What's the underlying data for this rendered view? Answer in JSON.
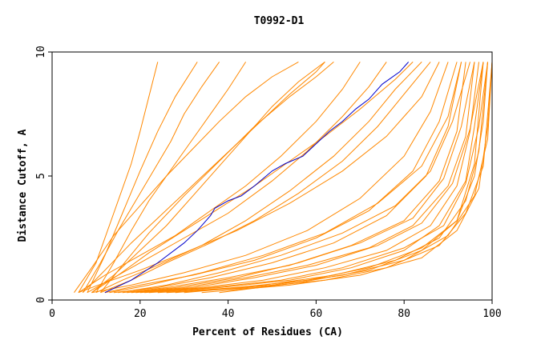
{
  "chart_data": {
    "type": "line",
    "title": "T0992-D1",
    "xlabel": "Percent of Residues (CA)",
    "ylabel": "Distance Cutoff, A",
    "xlim": [
      0,
      100
    ],
    "ylim": [
      0,
      10
    ],
    "x_ticks": [
      0,
      20,
      40,
      60,
      80,
      100
    ],
    "y_ticks": [
      0,
      5,
      10
    ],
    "grid": false,
    "colors": {
      "highlight": "#0000cc",
      "others": "#ff8800",
      "axes": "#000000"
    },
    "highlight": {
      "x": [
        12,
        18,
        24,
        30,
        33,
        36,
        37,
        40,
        43,
        46,
        50,
        53,
        57,
        60,
        63,
        66,
        69,
        72,
        75,
        79,
        81
      ],
      "y": [
        0.3,
        0.8,
        1.5,
        2.3,
        2.8,
        3.4,
        3.7,
        4.0,
        4.2,
        4.6,
        5.2,
        5.5,
        5.8,
        6.3,
        6.8,
        7.2,
        7.7,
        8.1,
        8.7,
        9.2,
        9.6
      ]
    },
    "series": [
      {
        "x": [
          6,
          10,
          14,
          18,
          20,
          22,
          24
        ],
        "y": [
          0.3,
          1.5,
          3.5,
          5.5,
          6.8,
          8.2,
          9.6
        ]
      },
      {
        "x": [
          8,
          12,
          16,
          20,
          24,
          28,
          33
        ],
        "y": [
          0.3,
          1.8,
          3.5,
          5.2,
          6.8,
          8.2,
          9.6
        ]
      },
      {
        "x": [
          10,
          14,
          18,
          22,
          28,
          34,
          40,
          44
        ],
        "y": [
          0.3,
          1.5,
          2.8,
          4.0,
          5.5,
          7.0,
          8.5,
          9.6
        ]
      },
      {
        "x": [
          7,
          12,
          18,
          24,
          30,
          36,
          42,
          48,
          54,
          60,
          62
        ],
        "y": [
          0.3,
          1.2,
          2.3,
          3.3,
          4.3,
          5.3,
          6.3,
          7.3,
          8.3,
          9.2,
          9.6
        ]
      },
      {
        "x": [
          9,
          14,
          20,
          26,
          32,
          38,
          44,
          50,
          56,
          62
        ],
        "y": [
          0.3,
          1.0,
          2.0,
          3.0,
          4.2,
          5.4,
          6.6,
          7.8,
          8.8,
          9.6
        ]
      },
      {
        "x": [
          6,
          12,
          20,
          28,
          36,
          44,
          52,
          60,
          66,
          70
        ],
        "y": [
          0.3,
          1.0,
          1.8,
          2.6,
          3.6,
          4.6,
          5.8,
          7.2,
          8.5,
          9.6
        ]
      },
      {
        "x": [
          11,
          16,
          22,
          30,
          38,
          46,
          54,
          60,
          64
        ],
        "y": [
          0.3,
          1.4,
          2.7,
          4.2,
          5.6,
          7.0,
          8.2,
          9.0,
          9.6
        ]
      },
      {
        "x": [
          8,
          14,
          22,
          30,
          40,
          50,
          58,
          66,
          72,
          76
        ],
        "y": [
          0.3,
          0.9,
          1.7,
          2.5,
          3.5,
          4.8,
          6.0,
          7.4,
          8.6,
          9.6
        ]
      },
      {
        "x": [
          10,
          16,
          24,
          34,
          44,
          54,
          64,
          72,
          78,
          84
        ],
        "y": [
          0.3,
          0.8,
          1.4,
          2.2,
          3.2,
          4.4,
          5.8,
          7.2,
          8.5,
          9.6
        ]
      },
      {
        "x": [
          6,
          12,
          20,
          30,
          42,
          54,
          66,
          76,
          84,
          88
        ],
        "y": [
          0.3,
          0.7,
          1.2,
          1.9,
          2.8,
          3.9,
          5.2,
          6.6,
          8.2,
          9.6
        ]
      },
      {
        "x": [
          9,
          18,
          30,
          44,
          58,
          70,
          80,
          86,
          90
        ],
        "y": [
          0.3,
          0.6,
          1.1,
          1.8,
          2.8,
          4.1,
          5.8,
          7.6,
          9.6
        ]
      },
      {
        "x": [
          12,
          20,
          32,
          46,
          60,
          72,
          82,
          88,
          92
        ],
        "y": [
          0.3,
          0.6,
          1.0,
          1.6,
          2.5,
          3.6,
          5.2,
          7.2,
          9.6
        ]
      },
      {
        "x": [
          14,
          24,
          36,
          50,
          64,
          76,
          85,
          90,
          93
        ],
        "y": [
          0.3,
          0.5,
          0.9,
          1.5,
          2.3,
          3.4,
          5.0,
          7.0,
          9.6
        ]
      },
      {
        "x": [
          16,
          26,
          40,
          54,
          68,
          80,
          88,
          92,
          94
        ],
        "y": [
          0.3,
          0.5,
          0.9,
          1.4,
          2.2,
          3.2,
          4.8,
          6.8,
          9.6
        ]
      },
      {
        "x": [
          18,
          30,
          44,
          58,
          72,
          82,
          90,
          94,
          96
        ],
        "y": [
          0.3,
          0.5,
          0.9,
          1.4,
          2.1,
          3.0,
          4.6,
          6.6,
          9.6
        ]
      },
      {
        "x": [
          20,
          34,
          48,
          62,
          76,
          86,
          92,
          95,
          97
        ],
        "y": [
          0.3,
          0.5,
          0.8,
          1.3,
          2.0,
          3.0,
          4.6,
          6.8,
          9.6
        ]
      },
      {
        "x": [
          22,
          38,
          54,
          68,
          80,
          88,
          94,
          96,
          98
        ],
        "y": [
          0.3,
          0.5,
          0.8,
          1.3,
          2.0,
          3.0,
          4.8,
          7.0,
          9.6
        ]
      },
      {
        "x": [
          24,
          42,
          58,
          72,
          84,
          92,
          96,
          98,
          99
        ],
        "y": [
          0.3,
          0.5,
          0.8,
          1.3,
          2.1,
          3.2,
          5.0,
          7.2,
          9.6
        ]
      },
      {
        "x": [
          26,
          46,
          62,
          76,
          88,
          94,
          98,
          99,
          100
        ],
        "y": [
          0.3,
          0.5,
          0.8,
          1.3,
          2.2,
          3.5,
          5.4,
          7.5,
          9.6
        ]
      },
      {
        "x": [
          30,
          50,
          66,
          80,
          90,
          96,
          99,
          100
        ],
        "y": [
          0.3,
          0.6,
          1.0,
          1.6,
          2.6,
          4.2,
          6.5,
          9.6
        ]
      },
      {
        "x": [
          34,
          54,
          70,
          84,
          92,
          97,
          99,
          100
        ],
        "y": [
          0.3,
          0.6,
          1.0,
          1.7,
          2.8,
          4.5,
          7.0,
          9.6
        ]
      },
      {
        "x": [
          28,
          48,
          64,
          78,
          88,
          94,
          97,
          99
        ],
        "y": [
          0.3,
          0.6,
          1.0,
          1.6,
          2.5,
          4.0,
          6.0,
          9.6
        ]
      },
      {
        "x": [
          38,
          56,
          72,
          84,
          92,
          96,
          98
        ],
        "y": [
          0.3,
          0.7,
          1.2,
          2.0,
          3.2,
          5.5,
          9.6
        ]
      },
      {
        "x": [
          15,
          26,
          38,
          52,
          66,
          78,
          86,
          91,
          95
        ],
        "y": [
          0.3,
          0.6,
          1.1,
          1.8,
          2.7,
          3.8,
          5.2,
          7.2,
          9.6
        ]
      },
      {
        "x": [
          13,
          22,
          34,
          48,
          62,
          74,
          84,
          90,
          93
        ],
        "y": [
          0.3,
          0.6,
          1.1,
          1.8,
          2.7,
          3.9,
          5.4,
          7.4,
          9.6
        ]
      },
      {
        "x": [
          17,
          28,
          42,
          56,
          70,
          82,
          89,
          93,
          96
        ],
        "y": [
          0.3,
          0.5,
          0.9,
          1.5,
          2.3,
          3.3,
          4.9,
          7.0,
          9.6
        ]
      },
      {
        "x": [
          19,
          32,
          46,
          60,
          74,
          84,
          91,
          95,
          98
        ],
        "y": [
          0.3,
          0.5,
          0.9,
          1.4,
          2.2,
          3.1,
          4.7,
          6.9,
          9.6
        ]
      },
      {
        "x": [
          21,
          36,
          52,
          66,
          80,
          89,
          94,
          97,
          99
        ],
        "y": [
          0.3,
          0.5,
          0.8,
          1.3,
          2.1,
          3.0,
          4.7,
          7.0,
          9.6
        ]
      },
      {
        "x": [
          7,
          11,
          15,
          19,
          23,
          27,
          30,
          34,
          38
        ],
        "y": [
          0.3,
          1.5,
          2.8,
          4.0,
          5.2,
          6.4,
          7.5,
          8.6,
          9.6
        ]
      },
      {
        "x": [
          5,
          9,
          14,
          20,
          26,
          32,
          38,
          44,
          50,
          56
        ],
        "y": [
          0.3,
          1.3,
          2.6,
          3.8,
          5.0,
          6.1,
          7.2,
          8.2,
          9.0,
          9.6
        ]
      },
      {
        "x": [
          9,
          15,
          22,
          30,
          38,
          46,
          54,
          62,
          70,
          78,
          82
        ],
        "y": [
          0.3,
          1.0,
          1.9,
          2.8,
          3.7,
          4.6,
          5.6,
          6.6,
          7.7,
          8.9,
          9.6
        ]
      },
      {
        "x": [
          11,
          18,
          26,
          36,
          46,
          56,
          66,
          74,
          80,
          86
        ],
        "y": [
          0.3,
          0.8,
          1.5,
          2.3,
          3.2,
          4.3,
          5.6,
          7.0,
          8.3,
          9.6
        ]
      }
    ]
  }
}
